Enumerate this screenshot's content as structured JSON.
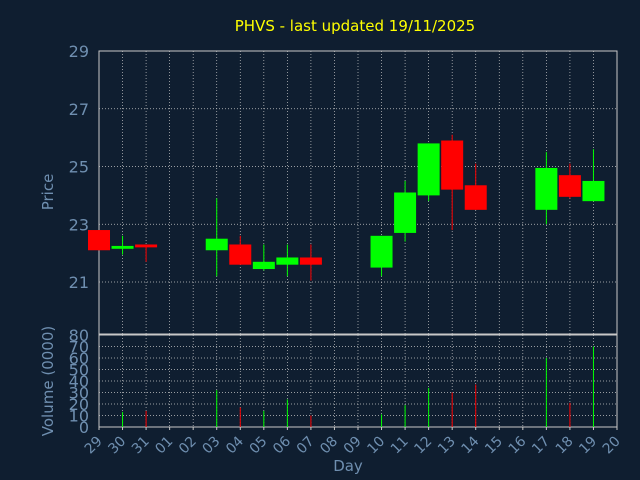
{
  "title": "PHVS - last updated 19/11/2025",
  "colors": {
    "background": "#0f1e30",
    "title": "#ffff00",
    "axis_text": "#6f8fb0",
    "up": "#00ff00",
    "down": "#ff0000",
    "grid": "#c8c8c8"
  },
  "chart_data": [
    {
      "type": "candlestick",
      "ylabel": "Price",
      "ylim": [
        19.2,
        29
      ],
      "yticks": [
        21,
        23,
        25,
        27,
        29
      ],
      "grid": true,
      "categories": [
        "29",
        "30",
        "31",
        "01",
        "02",
        "03",
        "04",
        "05",
        "06",
        "07",
        "08",
        "09",
        "10",
        "11",
        "12",
        "13",
        "14",
        "15",
        "16",
        "17",
        "18",
        "19",
        "20"
      ],
      "candles": [
        {
          "day": "29",
          "open": 22.8,
          "high": 22.8,
          "low": 22.1,
          "close": 22.1
        },
        {
          "day": "30",
          "open": 22.15,
          "high": 22.6,
          "low": 21.95,
          "close": 22.25
        },
        {
          "day": "31",
          "open": 22.3,
          "high": 22.3,
          "low": 21.7,
          "close": 22.2
        },
        {
          "day": "03",
          "open": 22.1,
          "high": 23.9,
          "low": 21.2,
          "close": 22.5
        },
        {
          "day": "04",
          "open": 22.3,
          "high": 22.6,
          "low": 21.6,
          "close": 21.6
        },
        {
          "day": "05",
          "open": 21.45,
          "high": 22.3,
          "low": 21.4,
          "close": 21.7
        },
        {
          "day": "06",
          "open": 21.6,
          "high": 22.3,
          "low": 21.2,
          "close": 21.85
        },
        {
          "day": "07",
          "open": 21.85,
          "high": 22.3,
          "low": 21.05,
          "close": 21.6
        },
        {
          "day": "10",
          "open": 21.5,
          "high": 22.6,
          "low": 21.2,
          "close": 22.6
        },
        {
          "day": "11",
          "open": 22.7,
          "high": 24.5,
          "low": 22.4,
          "close": 24.1
        },
        {
          "day": "12",
          "open": 24.0,
          "high": 25.8,
          "low": 23.8,
          "close": 25.8
        },
        {
          "day": "13",
          "open": 25.9,
          "high": 26.1,
          "low": 22.8,
          "close": 24.2
        },
        {
          "day": "14",
          "open": 24.35,
          "high": 25.1,
          "low": 23.5,
          "close": 23.5
        },
        {
          "day": "17",
          "open": 23.5,
          "high": 25.5,
          "low": 23.0,
          "close": 24.95
        },
        {
          "day": "18",
          "open": 24.7,
          "high": 25.1,
          "low": 23.9,
          "close": 23.95
        },
        {
          "day": "19",
          "open": 23.8,
          "high": 25.6,
          "low": 23.8,
          "close": 24.5
        }
      ]
    },
    {
      "type": "bar",
      "ylabel": "Volume (0000)",
      "xlabel": "Day",
      "ylim": [
        0,
        80
      ],
      "yticks": [
        0,
        10,
        20,
        30,
        40,
        50,
        60,
        70,
        80
      ],
      "grid": true,
      "categories": [
        "29",
        "30",
        "31",
        "01",
        "02",
        "03",
        "04",
        "05",
        "06",
        "07",
        "08",
        "09",
        "10",
        "11",
        "12",
        "13",
        "14",
        "15",
        "16",
        "17",
        "18",
        "19",
        "20"
      ],
      "bars": [
        {
          "day": "30",
          "value": 13,
          "dir": "up"
        },
        {
          "day": "31",
          "value": 14,
          "dir": "down"
        },
        {
          "day": "03",
          "value": 32,
          "dir": "up"
        },
        {
          "day": "04",
          "value": 17,
          "dir": "down"
        },
        {
          "day": "05",
          "value": 14,
          "dir": "up"
        },
        {
          "day": "06",
          "value": 24,
          "dir": "up"
        },
        {
          "day": "07",
          "value": 10,
          "dir": "down"
        },
        {
          "day": "10",
          "value": 11,
          "dir": "up"
        },
        {
          "day": "11",
          "value": 19,
          "dir": "up"
        },
        {
          "day": "12",
          "value": 34,
          "dir": "up"
        },
        {
          "day": "13",
          "value": 30,
          "dir": "down"
        },
        {
          "day": "14",
          "value": 37,
          "dir": "down"
        },
        {
          "day": "17",
          "value": 60,
          "dir": "up"
        },
        {
          "day": "18",
          "value": 21,
          "dir": "down"
        },
        {
          "day": "19",
          "value": 70,
          "dir": "up"
        }
      ]
    }
  ]
}
